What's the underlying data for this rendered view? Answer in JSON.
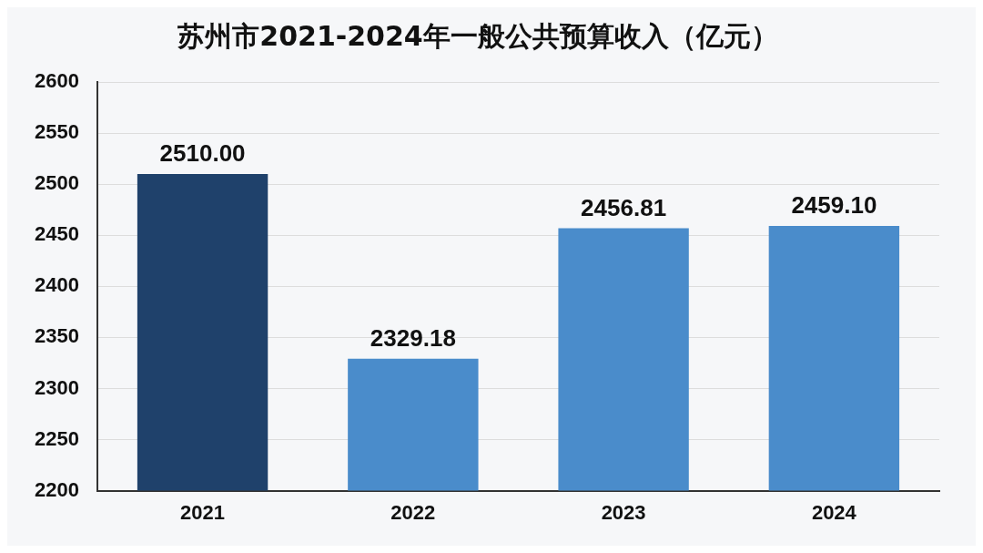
{
  "chart_data": {
    "type": "bar",
    "title": "苏州市2021-2024年一般公共预算收入（亿元）",
    "categories": [
      "2021",
      "2022",
      "2023",
      "2024"
    ],
    "values": [
      2510.0,
      2329.18,
      2456.81,
      2459.1
    ],
    "colors": [
      "#1f416b",
      "#4a8ccb",
      "#4a8ccb",
      "#4a8ccb"
    ],
    "value_labels": [
      "2510.00",
      "2329.18",
      "2456.81",
      "2459.10"
    ],
    "ylim": [
      2200,
      2600
    ],
    "yticks": [
      2200,
      2250,
      2300,
      2350,
      2400,
      2450,
      2500,
      2550,
      2600
    ],
    "grid": "y",
    "legend": false
  }
}
